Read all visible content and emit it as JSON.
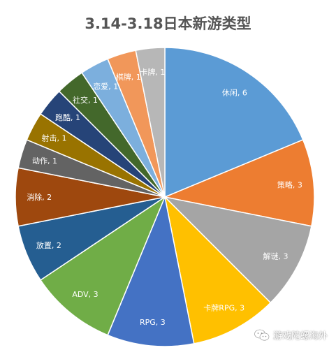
{
  "chart_data": {
    "type": "pie",
    "title": "3.14-3.18日本新游类型",
    "slices": [
      {
        "label": "休闲",
        "value": 6,
        "display": "休闲, 6",
        "color": "#5B9BD5"
      },
      {
        "label": "策略",
        "value": 3,
        "display": "策略, 3",
        "color": "#ED7D31"
      },
      {
        "label": "解谜",
        "value": 3,
        "display": "解谜, 3",
        "color": "#A5A5A5"
      },
      {
        "label": "卡牌RPG",
        "value": 3,
        "display": "卡牌RPG, 3",
        "color": "#FFC000"
      },
      {
        "label": "RPG",
        "value": 3,
        "display": "RPG, 3",
        "color": "#4472C4"
      },
      {
        "label": "ADV",
        "value": 3,
        "display": "ADV, 3",
        "color": "#70AD47"
      },
      {
        "label": "放置",
        "value": 2,
        "display": "放置, 2",
        "color": "#255E91"
      },
      {
        "label": "消除",
        "value": 2,
        "display": "消除, 2",
        "color": "#9E480E"
      },
      {
        "label": "动作",
        "value": 1,
        "display": "动作, 1",
        "color": "#636363"
      },
      {
        "label": "射击",
        "value": 1,
        "display": "射击, 1",
        "color": "#997300"
      },
      {
        "label": "跑酷",
        "value": 1,
        "display": "跑酷, 1",
        "color": "#264478"
      },
      {
        "label": "社交",
        "value": 1,
        "display": "社交, 1",
        "color": "#43682B"
      },
      {
        "label": "恋爱",
        "value": 1,
        "display": "恋爱, 1",
        "color": "#7CAFDD"
      },
      {
        "label": "棋牌",
        "value": 1,
        "display": "棋牌, 1",
        "color": "#F1975A"
      },
      {
        "label": "卡牌",
        "value": 1,
        "display": "卡牌, 1",
        "color": "#B7B7B7"
      }
    ]
  },
  "watermark": {
    "icon": "wechat-icon",
    "text": "游戏陀螺海外"
  }
}
